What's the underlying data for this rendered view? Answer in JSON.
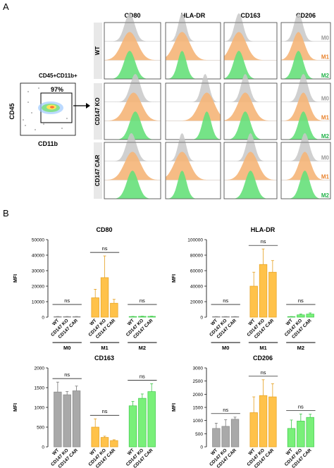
{
  "colors": {
    "m0": "#c8c8c8",
    "m1": "#f5b578",
    "m2": "#66e07a",
    "m0_label": "#9a9a9a",
    "m1_label": "#e8812b",
    "m2_label": "#22b24a",
    "bar_m0": "#a9a9a9",
    "bar_m1": "#ffc24a",
    "bar_m2": "#79f079"
  },
  "panel_a": {
    "label": "A",
    "markers": [
      "CD80",
      "HLA-DR",
      "CD163",
      "CD206"
    ],
    "rows": [
      "WT",
      "CD147 KO",
      "CD147 CAR"
    ],
    "populations": [
      "M0",
      "M1",
      "M2"
    ],
    "gate": {
      "title": "CD45+CD11b+",
      "percent": "97%",
      "y_axis": "CD45",
      "x_axis": "CD11b"
    }
  },
  "panel_b": {
    "label": "B"
  },
  "chart_data": [
    {
      "type": "bar",
      "title": "CD80",
      "ylabel": "MFI",
      "yticks": [
        0,
        10000,
        20000,
        30000,
        40000,
        50000
      ],
      "ylim": [
        0,
        50000
      ],
      "groups": [
        "M0",
        "M1",
        "M2"
      ],
      "categories": [
        "WT",
        "CD147 KO",
        "CD147 CAR"
      ],
      "series": [
        {
          "group": "M0",
          "values": [
            300,
            300,
            300
          ],
          "errors": [
            100,
            100,
            100
          ]
        },
        {
          "group": "M1",
          "values": [
            12500,
            25500,
            9000
          ],
          "errors": [
            5500,
            14000,
            2500
          ]
        },
        {
          "group": "M2",
          "values": [
            400,
            500,
            500
          ],
          "errors": [
            100,
            150,
            150
          ]
        }
      ],
      "annotations": [
        "ns",
        "ns",
        "ns"
      ]
    },
    {
      "type": "bar",
      "title": "HLA-DR",
      "ylabel": "MFI",
      "yticks": [
        0,
        20000,
        40000,
        60000,
        80000,
        100000
      ],
      "ylim": [
        0,
        100000
      ],
      "groups": [
        "M0",
        "M1",
        "M2"
      ],
      "categories": [
        "WT",
        "CD147 KO",
        "CD147 CAR"
      ],
      "series": [
        {
          "group": "M0",
          "values": [
            500,
            500,
            500
          ],
          "errors": [
            200,
            200,
            200
          ]
        },
        {
          "group": "M1",
          "values": [
            40000,
            68000,
            58000
          ],
          "errors": [
            18000,
            20000,
            15000
          ]
        },
        {
          "group": "M2",
          "values": [
            500,
            3000,
            4000
          ],
          "errors": [
            300,
            1000,
            1500
          ]
        }
      ],
      "annotations": [
        "ns",
        "ns",
        "ns"
      ]
    },
    {
      "type": "bar",
      "title": "CD163",
      "ylabel": "MFI",
      "yticks": [
        0,
        500,
        1000,
        1500,
        2000
      ],
      "ylim": [
        0,
        2000
      ],
      "groups": [
        "M0",
        "M1",
        "M2"
      ],
      "categories": [
        "WT",
        "CD147 KO",
        "CD147 CAR"
      ],
      "series": [
        {
          "group": "M0",
          "values": [
            1390,
            1320,
            1420
          ],
          "errors": [
            250,
            80,
            120
          ]
        },
        {
          "group": "M1",
          "values": [
            500,
            240,
            160
          ],
          "errors": [
            210,
            30,
            20
          ]
        },
        {
          "group": "M2",
          "values": [
            1040,
            1230,
            1400
          ],
          "errors": [
            110,
            110,
            200
          ]
        }
      ],
      "annotations": [
        "ns",
        "ns",
        "ns"
      ]
    },
    {
      "type": "bar",
      "title": "CD206",
      "ylabel": "MFI",
      "yticks": [
        0,
        500,
        1000,
        1500,
        2000,
        2500,
        3000
      ],
      "ylim": [
        0,
        3000
      ],
      "groups": [
        "M0",
        "M1",
        "M2"
      ],
      "categories": [
        "WT",
        "CD147 KO",
        "CD147 CAR"
      ],
      "series": [
        {
          "group": "M0",
          "values": [
            700,
            780,
            1050
          ],
          "errors": [
            200,
            250,
            80
          ]
        },
        {
          "group": "M1",
          "values": [
            1300,
            1950,
            1900
          ],
          "errors": [
            600,
            600,
            500
          ]
        },
        {
          "group": "M2",
          "values": [
            700,
            980,
            1120
          ],
          "errors": [
            320,
            270,
            120
          ]
        }
      ],
      "annotations": [
        "ns",
        "ns",
        "ns"
      ]
    }
  ]
}
